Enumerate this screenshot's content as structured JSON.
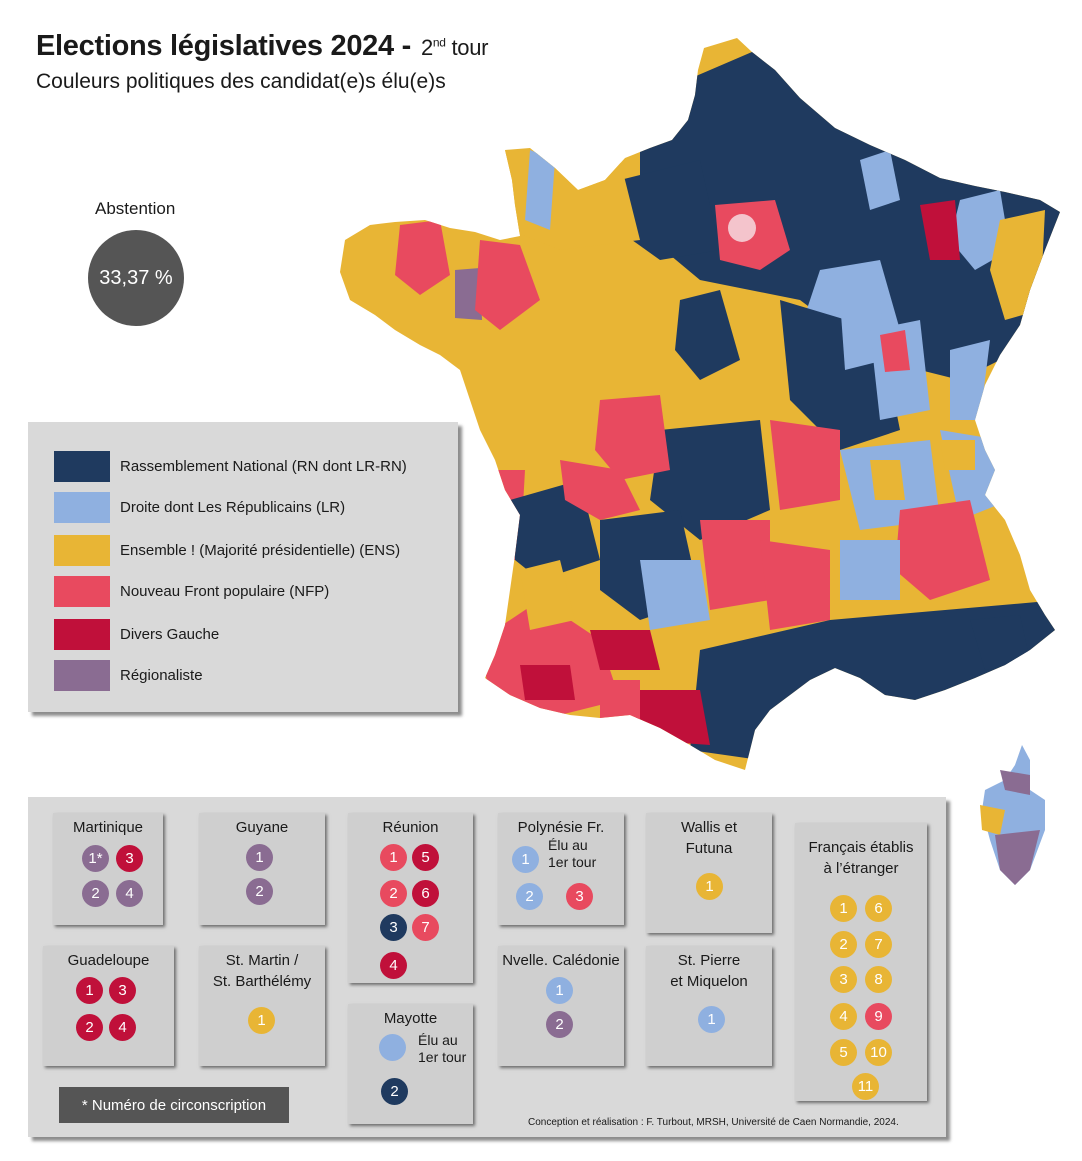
{
  "title": "Elections législatives 2024 -",
  "tour_num": "2",
  "tour_sup": "nd",
  "tour_word": "tour",
  "subtitle": "Couleurs politiques des candidat(e)s élu(e)s",
  "abstention": {
    "label": "Abstention",
    "value": "33,37 %"
  },
  "colors": {
    "RN": "#1f3a5f",
    "LR": "#8fb0e0",
    "ENS": "#e8b535",
    "NFP": "#e84a5f",
    "DVG": "#c0103a",
    "REG": "#8a6c92"
  },
  "legend": [
    {
      "key": "RN",
      "label": "Rassemblement National (RN dont LR-RN)"
    },
    {
      "key": "LR",
      "label": "Droite dont Les Républicains (LR)"
    },
    {
      "key": "ENS",
      "label": "Ensemble ! (Majorité présidentielle) (ENS)"
    },
    {
      "key": "NFP",
      "label": "Nouveau Front populaire (NFP)"
    },
    {
      "key": "DVG",
      "label": "Divers Gauche"
    },
    {
      "key": "REG",
      "label": "Régionaliste"
    }
  ],
  "territories": {
    "martinique": {
      "name": "Martinique",
      "seats": [
        {
          "n": "1*",
          "party": "REG"
        },
        {
          "n": "3",
          "party": "DVG"
        },
        {
          "n": "2",
          "party": "REG"
        },
        {
          "n": "4",
          "party": "REG"
        }
      ]
    },
    "guadeloupe": {
      "name": "Guadeloupe",
      "seats": [
        {
          "n": "1",
          "party": "DVG"
        },
        {
          "n": "3",
          "party": "DVG"
        },
        {
          "n": "2",
          "party": "DVG"
        },
        {
          "n": "4",
          "party": "DVG"
        }
      ]
    },
    "guyane": {
      "name": "Guyane",
      "seats": [
        {
          "n": "1",
          "party": "REG"
        },
        {
          "n": "2",
          "party": "REG"
        }
      ]
    },
    "stmartin": {
      "name_line1": "St. Martin /",
      "name_line2": "St. Barthélémy",
      "seats": [
        {
          "n": "1",
          "party": "ENS"
        }
      ]
    },
    "reunion": {
      "name": "Réunion",
      "seats": [
        {
          "n": "1",
          "party": "NFP"
        },
        {
          "n": "5",
          "party": "DVG"
        },
        {
          "n": "2",
          "party": "NFP"
        },
        {
          "n": "6",
          "party": "DVG"
        },
        {
          "n": "3",
          "party": "RN"
        },
        {
          "n": "7",
          "party": "NFP"
        },
        {
          "n": "4",
          "party": "DVG"
        }
      ]
    },
    "mayotte": {
      "name": "Mayotte",
      "note_line1": "Élu au",
      "note_line2": "1er tour",
      "seats": [
        {
          "n": "",
          "party": "LR"
        },
        {
          "n": "2",
          "party": "RN"
        }
      ]
    },
    "polynesie": {
      "name": "Polynésie Fr.",
      "note_line1": "Élu au",
      "note_line2": "1er tour",
      "seats": [
        {
          "n": "1",
          "party": "LR"
        },
        {
          "n": "2",
          "party": "LR"
        },
        {
          "n": "3",
          "party": "NFP"
        }
      ]
    },
    "caledonie": {
      "name": "Nvelle. Calédonie",
      "seats": [
        {
          "n": "1",
          "party": "LR"
        },
        {
          "n": "2",
          "party": "REG"
        }
      ]
    },
    "wallis": {
      "name_line1": "Wallis et",
      "name_line2": "Futuna",
      "seats": [
        {
          "n": "1",
          "party": "ENS"
        }
      ]
    },
    "stpierre": {
      "name_line1": "St. Pierre",
      "name_line2": "et Miquelon",
      "seats": [
        {
          "n": "1",
          "party": "LR"
        }
      ]
    },
    "etranger": {
      "name_line1": "Français établis",
      "name_line2": "à l’étranger",
      "seats": [
        {
          "n": "1",
          "party": "ENS"
        },
        {
          "n": "6",
          "party": "ENS"
        },
        {
          "n": "2",
          "party": "ENS"
        },
        {
          "n": "7",
          "party": "ENS"
        },
        {
          "n": "3",
          "party": "ENS"
        },
        {
          "n": "8",
          "party": "ENS"
        },
        {
          "n": "4",
          "party": "ENS"
        },
        {
          "n": "9",
          "party": "NFP"
        },
        {
          "n": "5",
          "party": "ENS"
        },
        {
          "n": "10",
          "party": "ENS"
        },
        {
          "n": "11",
          "party": "ENS"
        }
      ]
    }
  },
  "footnote": "*   Numéro de circonscription",
  "credits": "Conception et réalisation : F. Turbout, MRSH, Université de Caen Normandie, 2024."
}
